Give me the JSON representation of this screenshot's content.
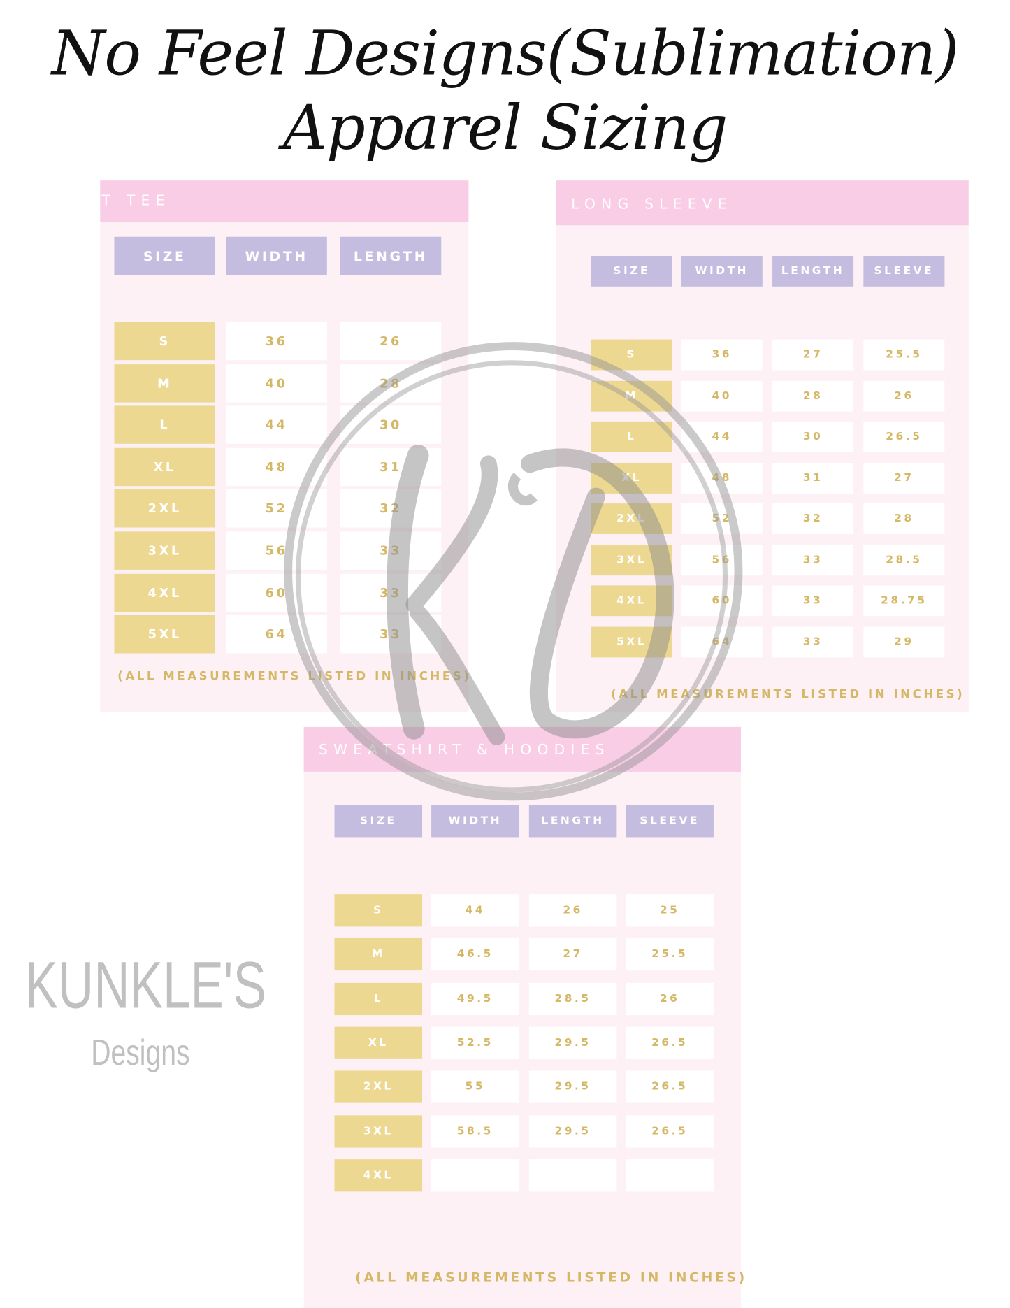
{
  "title": {
    "line1": "No Feel Designs(Sublimation)",
    "line2": "Apparel Sizing"
  },
  "colors": {
    "band": "#f9cde6",
    "panel": "#fdf1f6",
    "header_cell": "#c5bde0",
    "size_cell": "#ecd891",
    "value_text": "#d4b866"
  },
  "watermark": {
    "monogram": "KD",
    "brand": "KUNKLE'S",
    "sub": "Designs"
  },
  "tee": {
    "title": "T TEE",
    "headers": [
      "SIZE",
      "WIDTH",
      "LENGTH"
    ],
    "rows": [
      [
        "S",
        "36",
        "26"
      ],
      [
        "M",
        "40",
        "28"
      ],
      [
        "L",
        "44",
        "30"
      ],
      [
        "XL",
        "48",
        "31"
      ],
      [
        "2XL",
        "52",
        "32"
      ],
      [
        "3XL",
        "56",
        "33"
      ],
      [
        "4XL",
        "60",
        "33"
      ],
      [
        "5XL",
        "64",
        "33"
      ]
    ],
    "note": "(ALL MEASUREMENTS LISTED IN INCHES)"
  },
  "long_sleeve": {
    "title": "LONG SLEEVE",
    "headers": [
      "SIZE",
      "WIDTH",
      "LENGTH",
      "SLEEVE"
    ],
    "rows": [
      [
        "S",
        "36",
        "27",
        "25.5"
      ],
      [
        "M",
        "40",
        "28",
        "26"
      ],
      [
        "L",
        "44",
        "30",
        "26.5"
      ],
      [
        "XL",
        "48",
        "31",
        "27"
      ],
      [
        "2XL",
        "52",
        "32",
        "28"
      ],
      [
        "3XL",
        "56",
        "33",
        "28.5"
      ],
      [
        "4XL",
        "60",
        "33",
        "28.75"
      ],
      [
        "5XL",
        "64",
        "33",
        "29"
      ]
    ],
    "note": "(ALL MEASUREMENTS LISTED IN INCHES)"
  },
  "sweatshirt": {
    "title": "SWEATSHIRT & HOODIES",
    "headers": [
      "SIZE",
      "WIDTH",
      "LENGTH",
      "SLEEVE"
    ],
    "rows": [
      [
        "S",
        "44",
        "26",
        "25"
      ],
      [
        "M",
        "46.5",
        "27",
        "25.5"
      ],
      [
        "L",
        "49.5",
        "28.5",
        "26"
      ],
      [
        "XL",
        "52.5",
        "29.5",
        "26.5"
      ],
      [
        "2XL",
        "55",
        "29.5",
        "26.5"
      ],
      [
        "3XL",
        "58.5",
        "29.5",
        "26.5"
      ],
      [
        "4XL",
        "",
        "",
        ""
      ]
    ],
    "note": "(ALL MEASUREMENTS LISTED IN INCHES)"
  }
}
